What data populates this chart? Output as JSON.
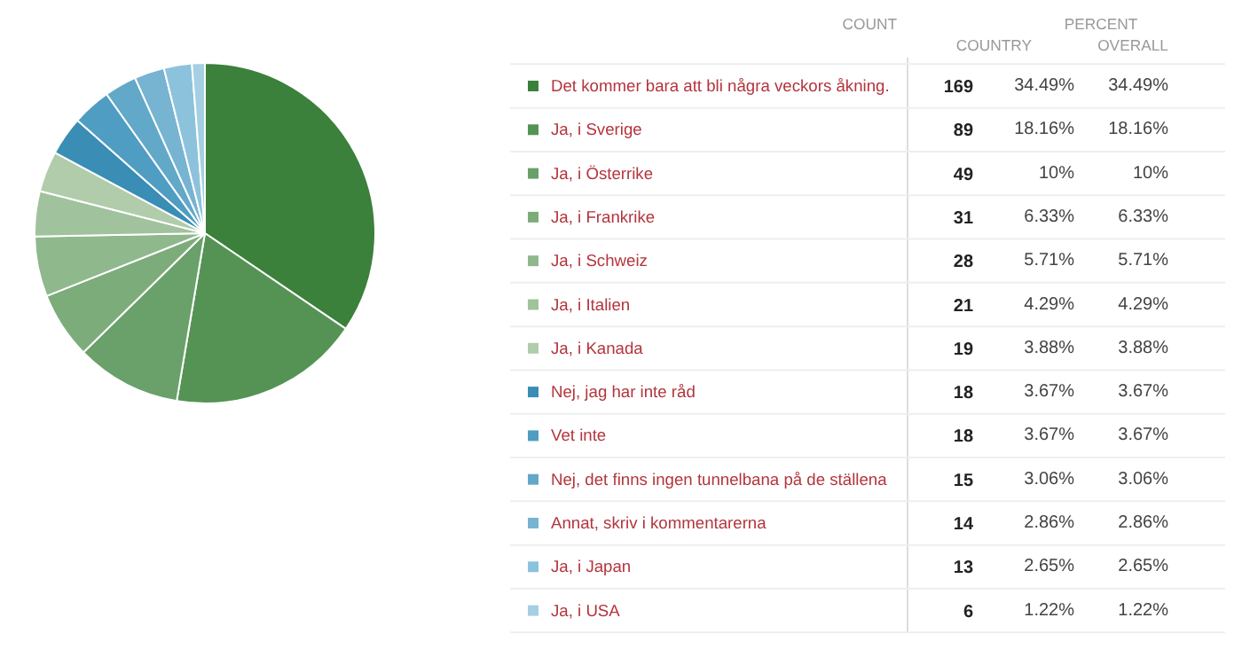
{
  "chart_data": {
    "type": "pie",
    "categories": [
      "Det kommer bara att bli några veckors åkning.",
      "Ja, i Sverige",
      "Ja, i Österrike",
      "Ja, i Frankrike",
      "Ja, i Schweiz",
      "Ja, i Italien",
      "Ja, i Kanada",
      "Nej, jag har inte råd",
      "Vet inte",
      "Nej, det finns ingen tunnelbana på de ställena",
      "Annat, skriv i kommentarerna",
      "Ja, i Japan",
      "Ja, i USA"
    ],
    "values": [
      169,
      89,
      49,
      31,
      28,
      21,
      19,
      18,
      18,
      15,
      14,
      13,
      6
    ],
    "colors": [
      "#3b803b",
      "#559355",
      "#6aa06a",
      "#7dac7b",
      "#8fb88d",
      "#a0c29c",
      "#b0ccab",
      "#3a8db4",
      "#4f9dc2",
      "#62a8c8",
      "#76b4d1",
      "#8dc2dc",
      "#a5cfe2"
    ],
    "data_labels": true,
    "annotations": [
      "COUNT",
      "PERCENT",
      "COUNTRY",
      "OVERALL",
      "34.49%",
      "18.16%",
      "10%",
      "6.33%",
      "5.71%",
      "4.29%",
      "3.88%",
      "3.67%",
      "3.67%",
      "3.06%",
      "2.86%",
      "2.65%",
      "1.22%",
      "34.49%",
      "18.16%",
      "10%",
      "6.33%",
      "5.71%",
      "4.29%",
      "3.88%",
      "3.67%",
      "3.67%",
      "3.06%",
      "2.86%",
      "2.65%",
      "1.22%"
    ],
    "legend": "right"
  }
}
